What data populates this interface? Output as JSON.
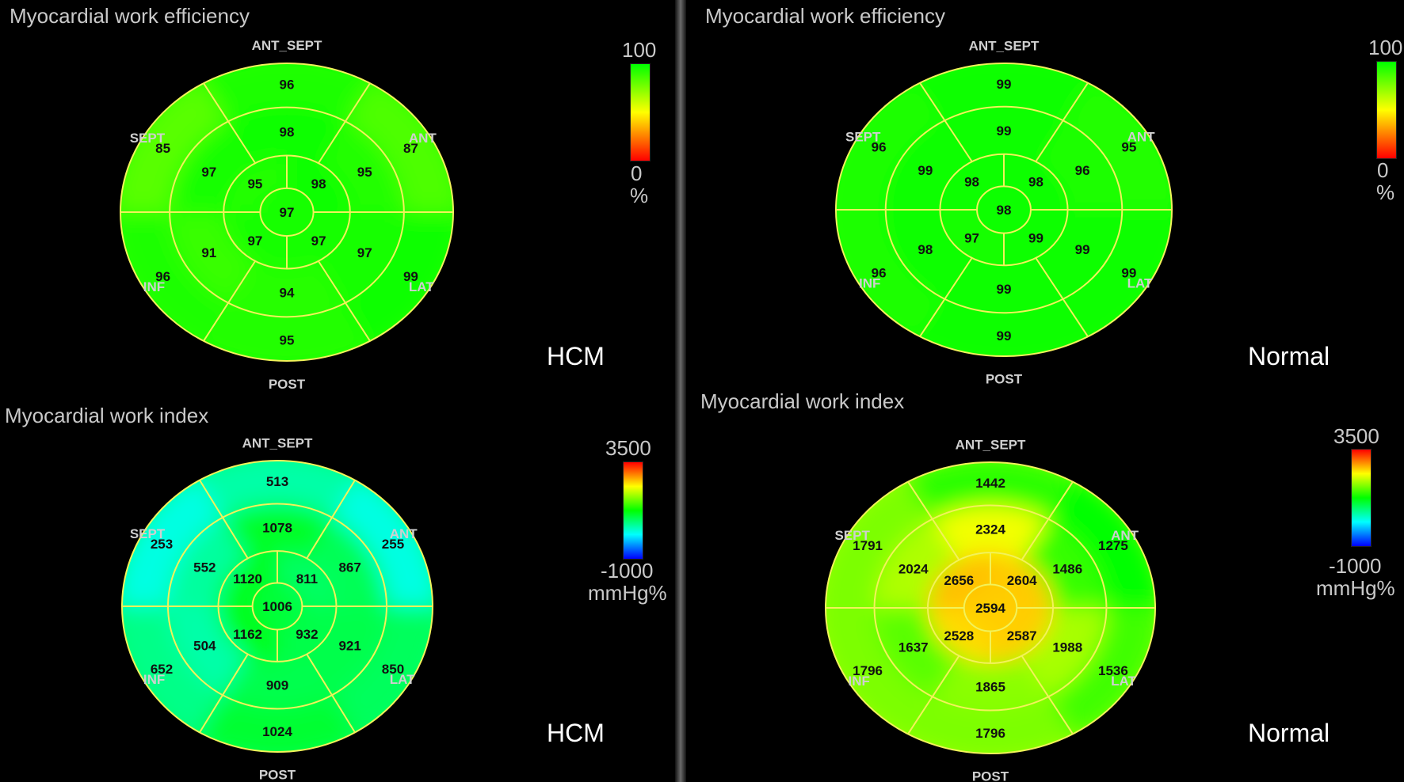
{
  "chart_data": [
    {
      "type": "bullseye",
      "title": "Myocardial work efficiency",
      "group": "HCM",
      "orientation_labels": {
        "top": "ANT_SEPT",
        "upper_left": "SEPT",
        "upper_right": "ANT",
        "lower_left": "INF",
        "lower_right": "LAT",
        "bottom": "POST"
      },
      "segments": {
        "basal": [
          96,
          87,
          99,
          95,
          96,
          85
        ],
        "mid": [
          98,
          95,
          97,
          94,
          91,
          97
        ],
        "apical": [
          98,
          97,
          97,
          95
        ],
        "apex": 97
      },
      "colorbar": {
        "max": "100",
        "min": "0",
        "unit": "%",
        "colors": [
          "#ff0000",
          "#ffff00",
          "#00ff00"
        ]
      }
    },
    {
      "type": "bullseye",
      "title": "Myocardial work efficiency",
      "group": "Normal",
      "orientation_labels": {
        "top": "ANT_SEPT",
        "upper_left": "SEPT",
        "upper_right": "ANT",
        "lower_left": "INF",
        "lower_right": "LAT",
        "bottom": "POST"
      },
      "segments": {
        "basal": [
          99,
          95,
          99,
          99,
          96,
          96
        ],
        "mid": [
          99,
          96,
          99,
          99,
          98,
          99
        ],
        "apical": [
          98,
          99,
          97,
          98
        ],
        "apex": 98
      },
      "colorbar": {
        "max": "100",
        "min": "0",
        "unit": "%",
        "colors": [
          "#ff0000",
          "#ffff00",
          "#00ff00"
        ]
      }
    },
    {
      "type": "bullseye",
      "title": "Myocardial work index",
      "group": "HCM",
      "orientation_labels": {
        "top": "ANT_SEPT",
        "upper_left": "SEPT",
        "upper_right": "ANT",
        "lower_left": "INF",
        "lower_right": "LAT",
        "bottom": "POST"
      },
      "segments": {
        "basal": [
          513,
          255,
          850,
          1024,
          652,
          253
        ],
        "mid": [
          1078,
          867,
          921,
          909,
          504,
          552
        ],
        "apical": [
          811,
          932,
          1162,
          1120
        ],
        "apex": 1006
      },
      "colorbar": {
        "max": "3500",
        "min": "-1000",
        "unit": "mmHg%",
        "colors": [
          "#0000ff",
          "#00ffff",
          "#00ff00",
          "#ffff00",
          "#ff0000"
        ]
      }
    },
    {
      "type": "bullseye",
      "title": "Myocardial work index",
      "group": "Normal",
      "orientation_labels": {
        "top": "ANT_SEPT",
        "upper_left": "SEPT",
        "upper_right": "ANT",
        "lower_left": "INF",
        "lower_right": "LAT",
        "bottom": "POST"
      },
      "segments": {
        "basal": [
          1442,
          1275,
          1536,
          1796,
          1796,
          1791
        ],
        "mid": [
          2324,
          1486,
          1988,
          1865,
          1637,
          2024
        ],
        "apical": [
          2604,
          2587,
          2528,
          2656
        ],
        "apex": 2594
      },
      "colorbar": {
        "max": "3500",
        "min": "-1000",
        "unit": "mmHg%",
        "colors": [
          "#0000ff",
          "#00ffff",
          "#00ff00",
          "#ffff00",
          "#ff0000"
        ]
      }
    }
  ]
}
